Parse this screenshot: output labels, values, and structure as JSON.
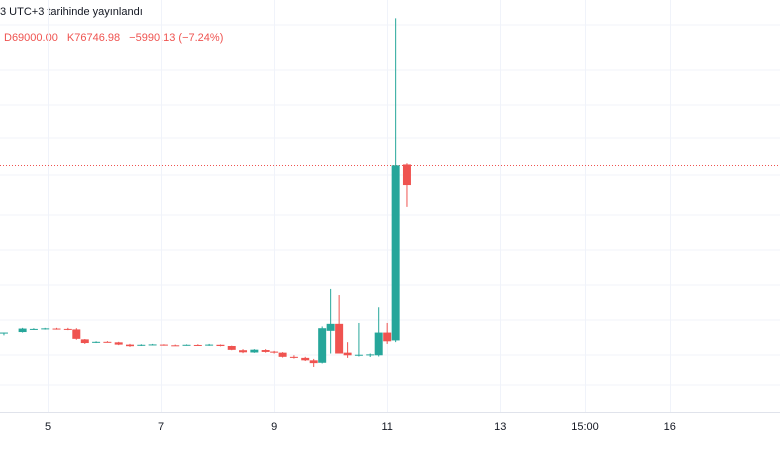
{
  "header": {
    "published_text": "3 UTC+3 tarihinde yayınlandı"
  },
  "legend": {
    "low": "D69000.00",
    "close": "K76746.98",
    "change": "−5990.13 (−7.24%)"
  },
  "colors": {
    "up": "#26a69a",
    "down": "#ef5350",
    "grid": "#f0f3fa",
    "price_line": "#ef5350"
  },
  "chart_data": {
    "type": "candlestick",
    "x_tick_labels": [
      "5",
      "7",
      "9",
      "11",
      "13",
      "15:00",
      "16"
    ],
    "x_tick_positions": [
      5,
      7,
      9,
      11,
      13,
      14.5,
      16
    ],
    "x_range": [
      4.15,
      17.95
    ],
    "y_range": [
      68600,
      92200
    ],
    "last_price": 82737,
    "candles": [
      {
        "t": 4.22,
        "o": 73100,
        "h": 73150,
        "l": 72990,
        "c": 73150
      },
      {
        "t": 4.55,
        "o": 73180,
        "h": 73420,
        "l": 73150,
        "c": 73380
      },
      {
        "t": 4.75,
        "o": 73340,
        "h": 73400,
        "l": 73300,
        "c": 73360
      },
      {
        "t": 4.95,
        "o": 73370,
        "h": 73420,
        "l": 73320,
        "c": 73390
      },
      {
        "t": 5.15,
        "o": 73380,
        "h": 73420,
        "l": 73320,
        "c": 73360
      },
      {
        "t": 5.35,
        "o": 73360,
        "h": 73420,
        "l": 73290,
        "c": 73340
      },
      {
        "t": 5.5,
        "o": 73330,
        "h": 73400,
        "l": 72740,
        "c": 72790
      },
      {
        "t": 5.65,
        "o": 72760,
        "h": 72780,
        "l": 72500,
        "c": 72550
      },
      {
        "t": 5.85,
        "o": 72600,
        "h": 72650,
        "l": 72550,
        "c": 72620
      },
      {
        "t": 6.05,
        "o": 72620,
        "h": 72660,
        "l": 72580,
        "c": 72600
      },
      {
        "t": 6.25,
        "o": 72590,
        "h": 72620,
        "l": 72430,
        "c": 72460
      },
      {
        "t": 6.45,
        "o": 72460,
        "h": 72500,
        "l": 72330,
        "c": 72370
      },
      {
        "t": 6.65,
        "o": 72400,
        "h": 72480,
        "l": 72380,
        "c": 72450
      },
      {
        "t": 6.85,
        "o": 72460,
        "h": 72500,
        "l": 72420,
        "c": 72470
      },
      {
        "t": 7.05,
        "o": 72460,
        "h": 72480,
        "l": 72400,
        "c": 72420
      },
      {
        "t": 7.25,
        "o": 72420,
        "h": 72460,
        "l": 72380,
        "c": 72410
      },
      {
        "t": 7.45,
        "o": 72420,
        "h": 72470,
        "l": 72400,
        "c": 72450
      },
      {
        "t": 7.65,
        "o": 72440,
        "h": 72480,
        "l": 72400,
        "c": 72420
      },
      {
        "t": 7.85,
        "o": 72420,
        "h": 72500,
        "l": 72390,
        "c": 72460
      },
      {
        "t": 8.05,
        "o": 72450,
        "h": 72470,
        "l": 72360,
        "c": 72380
      },
      {
        "t": 8.25,
        "o": 72380,
        "h": 72400,
        "l": 72140,
        "c": 72160
      },
      {
        "t": 8.45,
        "o": 72140,
        "h": 72200,
        "l": 71970,
        "c": 72020
      },
      {
        "t": 8.65,
        "o": 72010,
        "h": 72200,
        "l": 71990,
        "c": 72170
      },
      {
        "t": 8.85,
        "o": 72150,
        "h": 72200,
        "l": 72000,
        "c": 72040
      },
      {
        "t": 9.0,
        "o": 72060,
        "h": 72100,
        "l": 71950,
        "c": 72000
      },
      {
        "t": 9.15,
        "o": 72000,
        "h": 72030,
        "l": 71720,
        "c": 71760
      },
      {
        "t": 9.35,
        "o": 71760,
        "h": 71850,
        "l": 71660,
        "c": 71700
      },
      {
        "t": 9.55,
        "o": 71700,
        "h": 71760,
        "l": 71520,
        "c": 71560
      },
      {
        "t": 9.7,
        "o": 71560,
        "h": 71640,
        "l": 71180,
        "c": 71400
      },
      {
        "t": 9.85,
        "o": 71420,
        "h": 73500,
        "l": 71380,
        "c": 73400
      },
      {
        "t": 10.0,
        "o": 73250,
        "h": 75650,
        "l": 71950,
        "c": 73650
      },
      {
        "t": 10.15,
        "o": 73650,
        "h": 75300,
        "l": 71950,
        "c": 71950
      },
      {
        "t": 10.3,
        "o": 72000,
        "h": 72600,
        "l": 71700,
        "c": 71850
      },
      {
        "t": 10.5,
        "o": 71850,
        "h": 73700,
        "l": 71780,
        "c": 71880
      },
      {
        "t": 10.7,
        "o": 71880,
        "h": 71950,
        "l": 71750,
        "c": 71900
      },
      {
        "t": 10.85,
        "o": 71850,
        "h": 74600,
        "l": 71780,
        "c": 73150
      },
      {
        "t": 11.0,
        "o": 73150,
        "h": 73700,
        "l": 72500,
        "c": 72650
      },
      {
        "t": 11.15,
        "o": 72700,
        "h": 91150,
        "l": 72600,
        "c": 82730
      },
      {
        "t": 11.35,
        "o": 82780,
        "h": 82850,
        "l": 80350,
        "c": 81600
      }
    ]
  }
}
